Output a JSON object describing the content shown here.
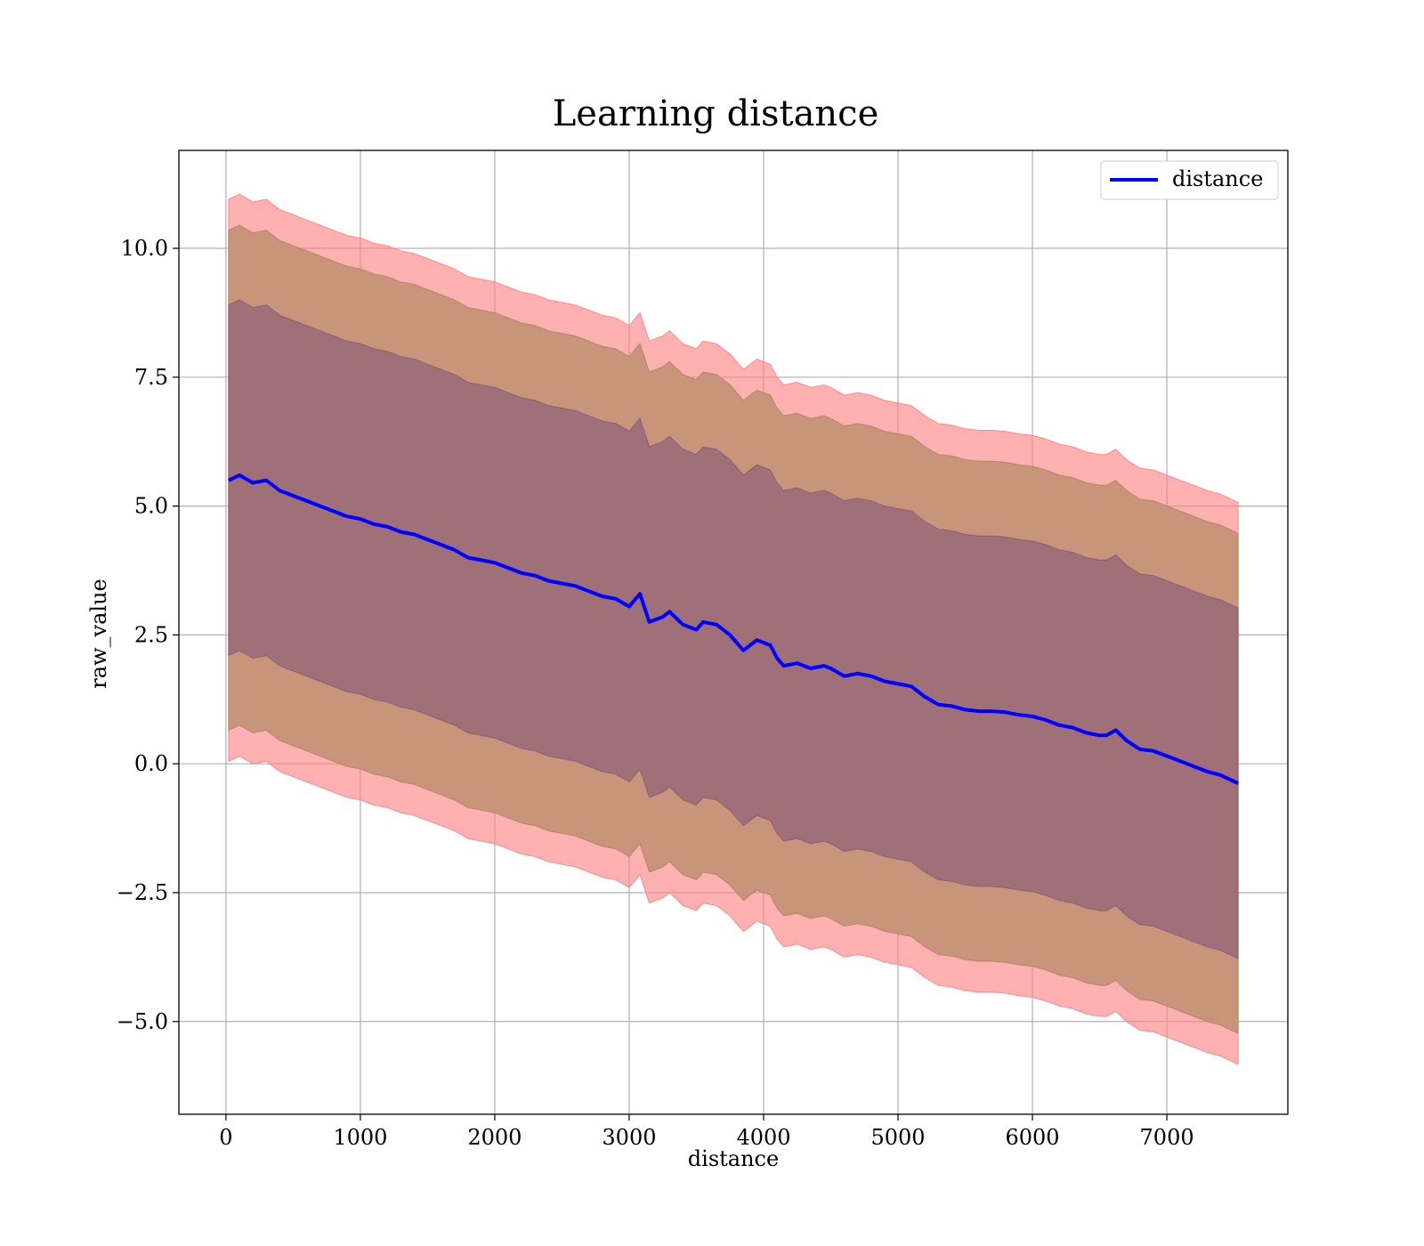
{
  "chart_data": {
    "type": "line",
    "title": "Learning distance",
    "xlabel": "distance",
    "ylabel": "raw_value",
    "xlim": [
      -350,
      7900
    ],
    "ylim": [
      -6.8,
      11.9
    ],
    "xticks": [
      0,
      1000,
      2000,
      3000,
      4000,
      5000,
      6000,
      7000
    ],
    "xtick_labels": [
      "0",
      "1000",
      "2000",
      "3000",
      "4000",
      "5000",
      "6000",
      "7000"
    ],
    "yticks": [
      -5.0,
      -2.5,
      0.0,
      2.5,
      5.0,
      7.5,
      10.0
    ],
    "ytick_labels": [
      "−5.0",
      "−2.5",
      "0.0",
      "2.5",
      "5.0",
      "7.5",
      "10.0"
    ],
    "grid": true,
    "legend": {
      "placement": "top-right",
      "entries": [
        "distance"
      ]
    },
    "colors": {
      "line": "#0000ff",
      "band": "#ff0000",
      "band_overlap_mid": "#c8947a",
      "band_overlap_inner": "#a07078"
    },
    "series": [
      {
        "name": "distance",
        "x": [
          20,
          100,
          200,
          300,
          400,
          500,
          600,
          700,
          800,
          900,
          1000,
          1100,
          1200,
          1300,
          1400,
          1500,
          1600,
          1700,
          1800,
          1900,
          2000,
          2100,
          2200,
          2300,
          2400,
          2500,
          2600,
          2700,
          2800,
          2900,
          3000,
          3080,
          3150,
          3250,
          3300,
          3400,
          3500,
          3550,
          3650,
          3750,
          3850,
          3950,
          4050,
          4100,
          4150,
          4250,
          4350,
          4450,
          4500,
          4600,
          4700,
          4800,
          4900,
          5000,
          5100,
          5200,
          5300,
          5400,
          5500,
          5600,
          5700,
          5800,
          5900,
          6000,
          6100,
          6200,
          6300,
          6400,
          6500,
          6550,
          6620,
          6700,
          6800,
          6900,
          7000,
          7100,
          7200,
          7300,
          7400,
          7530
        ],
        "values": [
          5.5,
          5.6,
          5.45,
          5.5,
          5.3,
          5.2,
          5.1,
          5.0,
          4.9,
          4.8,
          4.75,
          4.65,
          4.6,
          4.5,
          4.45,
          4.35,
          4.25,
          4.15,
          4.0,
          3.95,
          3.9,
          3.8,
          3.7,
          3.65,
          3.55,
          3.5,
          3.45,
          3.35,
          3.25,
          3.2,
          3.05,
          3.3,
          2.75,
          2.85,
          2.95,
          2.7,
          2.6,
          2.75,
          2.7,
          2.5,
          2.2,
          2.4,
          2.3,
          2.05,
          1.9,
          1.95,
          1.85,
          1.9,
          1.85,
          1.7,
          1.75,
          1.7,
          1.6,
          1.55,
          1.5,
          1.3,
          1.15,
          1.12,
          1.05,
          1.02,
          1.02,
          1.0,
          0.95,
          0.92,
          0.85,
          0.75,
          0.7,
          0.6,
          0.55,
          0.55,
          0.65,
          0.45,
          0.28,
          0.25,
          0.15,
          0.05,
          -0.05,
          -0.15,
          -0.22,
          -0.38
        ],
        "band_halfwidths": {
          "inner": 3.4,
          "middle": 4.85,
          "outer": 5.45
        }
      }
    ]
  }
}
